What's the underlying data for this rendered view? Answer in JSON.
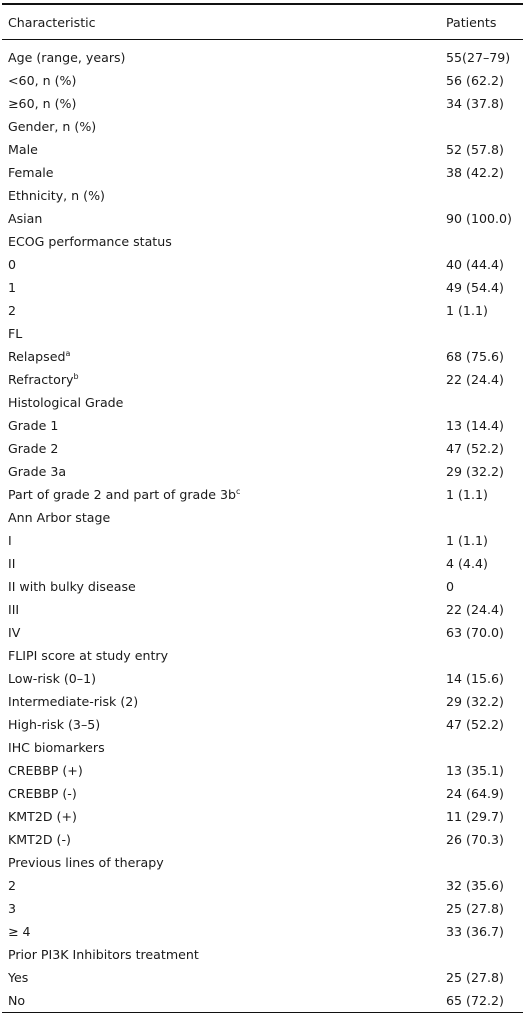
{
  "table": {
    "header": [
      "Characteristic",
      "Patients"
    ],
    "rows": [
      {
        "label": "Age (range, years)",
        "value": "55(27–79)"
      },
      {
        "label": "<60, n (%)",
        "value": "56 (62.2)"
      },
      {
        "label": "≥60, n (%)",
        "value": "34 (37.8)"
      },
      {
        "label": "Gender, n (%)"
      },
      {
        "label": "Male",
        "value": "52 (57.8)"
      },
      {
        "label": "Female",
        "value": "38 (42.2)"
      },
      {
        "label": "Ethnicity, n (%)"
      },
      {
        "label": "Asian",
        "value": "90 (100.0)"
      },
      {
        "label": "ECOG performance status"
      },
      {
        "label": "0",
        "value": "40 (44.4)"
      },
      {
        "label": "1",
        "value": "49 (54.4)"
      },
      {
        "label": "2",
        "value": "1 (1.1)"
      },
      {
        "label": "FL"
      },
      {
        "label": "Relapsed",
        "sup": "a",
        "value": "68 (75.6)"
      },
      {
        "label": "Refractory",
        "sup": "b",
        "value": "22 (24.4)"
      },
      {
        "label": "Histological Grade"
      },
      {
        "label": "Grade 1",
        "value": "13 (14.4)"
      },
      {
        "label": "Grade 2",
        "value": "47 (52.2)"
      },
      {
        "label": "Grade 3a",
        "value": "29 (32.2)"
      },
      {
        "label": "Part of grade 2 and part of grade 3b",
        "sup": "c",
        "value": "1 (1.1)"
      },
      {
        "label": "Ann Arbor stage"
      },
      {
        "label": "I",
        "value": "1 (1.1)"
      },
      {
        "label": "II",
        "value": "4 (4.4)"
      },
      {
        "label": "II with bulky disease",
        "value": "0"
      },
      {
        "label": "III",
        "value": "22 (24.4)"
      },
      {
        "label": "IV",
        "value": "63 (70.0)"
      },
      {
        "label": "FLIPI score at study entry"
      },
      {
        "label": "Low-risk (0–1)",
        "value": "14 (15.6)"
      },
      {
        "label": "Intermediate-risk (2)",
        "value": "29 (32.2)"
      },
      {
        "label": "High-risk (3–5)",
        "value": "47 (52.2)"
      },
      {
        "label": "IHC biomarkers"
      },
      {
        "label": "CREBBP (+)",
        "value": "13 (35.1)"
      },
      {
        "label": "CREBBP (-)",
        "value": "24 (64.9)"
      },
      {
        "label": "KMT2D (+)",
        "value": "11 (29.7)"
      },
      {
        "label": "KMT2D (-)",
        "value": "26 (70.3)"
      },
      {
        "label": "Previous lines of therapy"
      },
      {
        "label": "2",
        "value": "32 (35.6)"
      },
      {
        "label": "3",
        "value": "25 (27.8)"
      },
      {
        "label": "≥ 4",
        "value": "33 (36.7)"
      },
      {
        "label": "Prior PI3K Inhibitors treatment"
      },
      {
        "label": "Yes",
        "value": "25 (27.8)"
      },
      {
        "label": "No",
        "value": "65 (72.2)"
      }
    ]
  }
}
